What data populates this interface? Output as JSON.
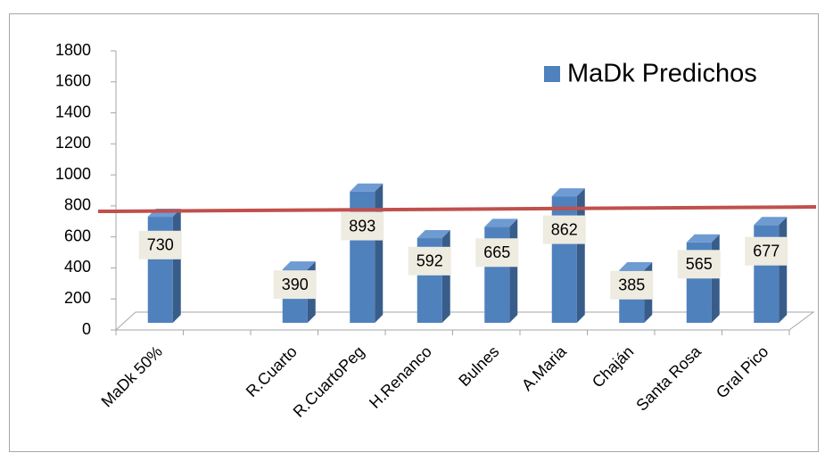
{
  "chart_data": {
    "type": "bar",
    "categories": [
      "MaDk 50%",
      null,
      "R.Cuarto",
      "R.CuartoPeg",
      "H.Renanco",
      "Bulnes",
      "A.Maria",
      "Chaján",
      "Santa Rosa",
      "Gral Pico"
    ],
    "series": [
      {
        "name": "MaDk Predichos",
        "color": "#4f81bd",
        "values": [
          730,
          null,
          390,
          893,
          592,
          665,
          862,
          385,
          565,
          677
        ]
      }
    ],
    "reference_line": {
      "value": 730,
      "color": "#c0504d"
    },
    "ylim": [
      0,
      1800
    ],
    "yticks": [
      0,
      200,
      400,
      600,
      800,
      1000,
      1200,
      1400,
      1600,
      1800
    ],
    "legend": "top-right"
  }
}
